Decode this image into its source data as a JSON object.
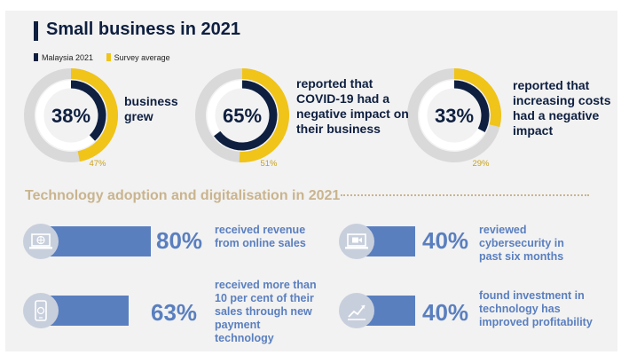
{
  "title": "Small business in 2021",
  "legend": [
    {
      "label": "Malaysia 2021",
      "color": "#0e1f40"
    },
    {
      "label": "Survey average",
      "color": "#f0c419"
    }
  ],
  "chart_data": {
    "type": "pie",
    "title": "Small business in 2021",
    "series": [
      {
        "name": "Malaysia 2021",
        "color": "#0e1f40",
        "values": [
          38,
          65,
          33
        ]
      },
      {
        "name": "Survey average",
        "color": "#f0c419",
        "values": [
          47,
          51,
          29
        ]
      }
    ],
    "items": [
      {
        "value": 38,
        "value_label": "38%",
        "average": 47,
        "average_label": "47%",
        "description": "business grew"
      },
      {
        "value": 65,
        "value_label": "65%",
        "average": 51,
        "average_label": "51%",
        "description": "reported that COVID-19 had a negative impact on their business"
      },
      {
        "value": 33,
        "value_label": "33%",
        "average": 29,
        "average_label": "29%",
        "description": "reported that increasing costs had a negative impact"
      }
    ]
  },
  "section_title": "Technology adoption and digitalisation in 2021",
  "tech_stats": [
    {
      "value": 80,
      "label": "80%",
      "description": "received revenue from online sales",
      "icon": "laptop-globe-icon"
    },
    {
      "value": 40,
      "label": "40%",
      "description": "reviewed cybersecurity in past six months",
      "icon": "laptop-video-icon"
    },
    {
      "value": 63,
      "label": "63%",
      "description": "received more than 10 per cent of their sales through new payment technology",
      "icon": "phone-payment-icon"
    },
    {
      "value": 40,
      "label": "40%",
      "description": "found investment in technology has improved profitability",
      "icon": "growth-chart-icon"
    }
  ],
  "colors": {
    "navy": "#0e1f40",
    "gold": "#f0c419",
    "blue": "#5a7fbf",
    "tan": "#c9b48e",
    "track": "#d9d9d9"
  }
}
